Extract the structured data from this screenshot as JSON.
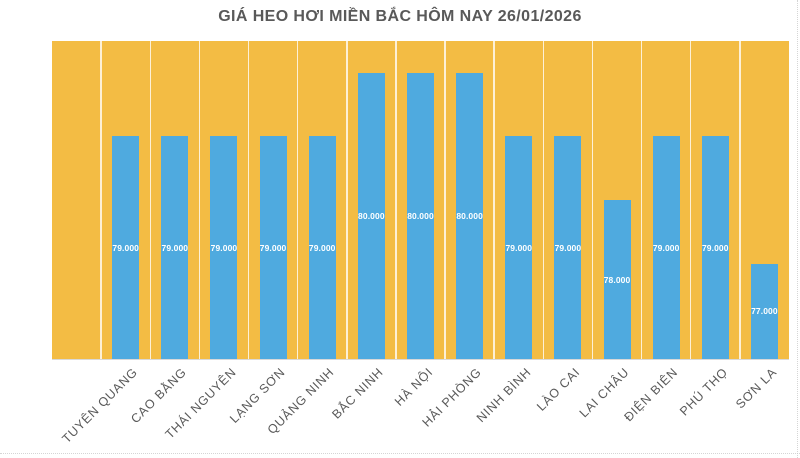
{
  "chart_data": {
    "type": "bar",
    "title": "GIÁ HEO HƠI MIỀN BẮC HÔM NAY 26/01/2026",
    "categories": [
      "TUYÊN QUANG",
      "CAO BẰNG",
      "THÁI NGUYÊN",
      "LẠNG SƠN",
      "QUẢNG NINH",
      "BẮC NINH",
      "HÀ NỘI",
      "HẢI PHÒNG",
      "NINH BÌNH",
      "LÀO CAI",
      "LAI CHÂU",
      "ĐIỆN BIÊN",
      "PHÚ THỌ",
      "SƠN LA"
    ],
    "values": [
      79000,
      79000,
      79000,
      79000,
      79000,
      80000,
      80000,
      80000,
      79000,
      79000,
      78000,
      79000,
      79000,
      77000
    ],
    "value_labels": [
      "79.000",
      "79.000",
      "79.000",
      "79.000",
      "79.000",
      "80.000",
      "80.000",
      "80.000",
      "79.000",
      "79.000",
      "78.000",
      "79.000",
      "79.000",
      "77.000"
    ],
    "xlabel": "",
    "ylabel": "",
    "ylim": [
      75500,
      80500
    ],
    "grid": "vertical-only",
    "legend": "none",
    "leading_empty_category": true,
    "colors": {
      "plot_bg": "#F3BC44",
      "bar": "#4FAADF",
      "gridline": "rgba(255,255,255,0.78)",
      "title_text": "#595959",
      "axis_label_text": "#595959",
      "value_label_text": "#FFFFFF"
    }
  }
}
